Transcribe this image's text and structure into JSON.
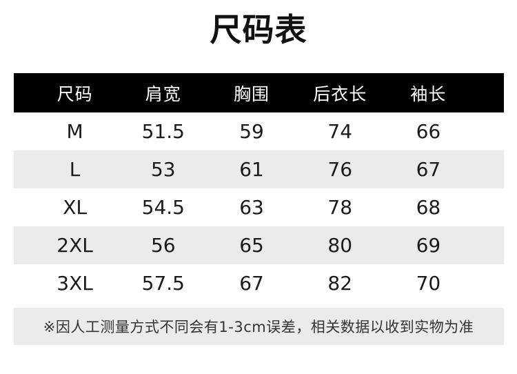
{
  "page": {
    "title": "尺码表"
  },
  "table": {
    "headers": [
      "尺码",
      "肩宽",
      "胸围",
      "后衣长",
      "袖长"
    ],
    "rows": [
      [
        "M",
        "51.5",
        "59",
        "74",
        "66"
      ],
      [
        "L",
        "53",
        "61",
        "76",
        "67"
      ],
      [
        "XL",
        "54.5",
        "63",
        "78",
        "68"
      ],
      [
        "2XL",
        "56",
        "65",
        "80",
        "69"
      ],
      [
        "3XL",
        "57.5",
        "67",
        "82",
        "70"
      ]
    ]
  },
  "footer": {
    "note": "※因人工测量方式不同会有1-3cm误差，相关数据以收到实物为准"
  },
  "colors": {
    "header_bg": "#000000",
    "header_text": "#ffffff",
    "stripe_bg": "#ebebeb",
    "body_text": "#1a1a1a",
    "note_text": "#333333"
  }
}
